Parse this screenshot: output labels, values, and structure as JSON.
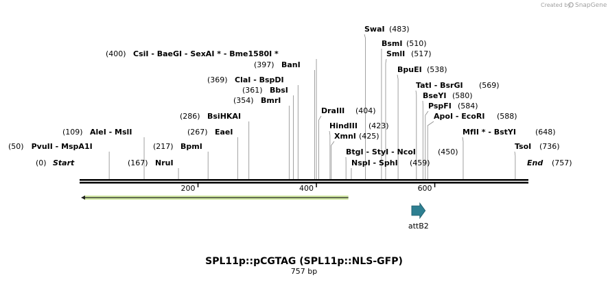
{
  "brand": {
    "created_by": "Created by",
    "app_name": "SnapGene"
  },
  "map": {
    "name": "SPL11p::pCGTAG (SPL11p::NLS-GFP)",
    "length_label": "757 bp",
    "start_label": "Start",
    "start_pos": "(0)",
    "end_label": "End",
    "end_pos": "(757)",
    "total_bp": 757,
    "axis_ticks": [
      200,
      400,
      600
    ]
  },
  "sites": [
    {
      "text": "PvuII - MspA1I",
      "pos": 50,
      "pos_text": "(50)"
    },
    {
      "text": "AleI - MslI",
      "pos": 109,
      "pos_text": "(109)"
    },
    {
      "text": "NruI",
      "pos": 167,
      "pos_text": "(167)"
    },
    {
      "text": "BpmI",
      "pos": 217,
      "pos_text": "(217)"
    },
    {
      "text": "EaeI",
      "pos": 267,
      "pos_text": "(267)"
    },
    {
      "text": "BsiHKAI",
      "pos": 286,
      "pos_text": "(286)"
    },
    {
      "text": "BmrI",
      "pos": 354,
      "pos_text": "(354)"
    },
    {
      "text": "BbsI",
      "pos": 361,
      "pos_text": "(361)"
    },
    {
      "text": "ClaI - BspDI",
      "pos": 369,
      "pos_text": "(369)"
    },
    {
      "text": "BanI",
      "pos": 397,
      "pos_text": "(397)"
    },
    {
      "text": "CsiI - BaeGI - SexAI * - Bme1580I *",
      "pos": 400,
      "pos_text": "(400)"
    },
    {
      "text": "DraIII",
      "pos": 404,
      "pos_text": "(404)"
    },
    {
      "text": "HindIII",
      "pos": 423,
      "pos_text": "(423)"
    },
    {
      "text": "XmnI",
      "pos": 425,
      "pos_text": "(425)"
    },
    {
      "text": "BtgI - StyI - NcoI",
      "pos": 450,
      "pos_text": "(450)"
    },
    {
      "text": "NspI - SphI",
      "pos": 459,
      "pos_text": "(459)"
    },
    {
      "text": "SwaI",
      "pos": 483,
      "pos_text": "(483)"
    },
    {
      "text": "BsmI",
      "pos": 510,
      "pos_text": "(510)"
    },
    {
      "text": "SmlI",
      "pos": 517,
      "pos_text": "(517)"
    },
    {
      "text": "BpuEI",
      "pos": 538,
      "pos_text": "(538)"
    },
    {
      "text": "TatI - BsrGI",
      "pos": 569,
      "pos_text": "(569)"
    },
    {
      "text": "BseYI",
      "pos": 580,
      "pos_text": "(580)"
    },
    {
      "text": "PspFI",
      "pos": 584,
      "pos_text": "(584)"
    },
    {
      "text": "ApoI - EcoRI",
      "pos": 588,
      "pos_text": "(588)"
    },
    {
      "text": "MfII * - BstYI",
      "pos": 648,
      "pos_text": "(648)"
    },
    {
      "text": "TsoI",
      "pos": 736,
      "pos_text": "(736)"
    }
  ],
  "features": [
    {
      "name": "",
      "start": 0,
      "end": 454,
      "direction": "reverse",
      "color": "#9acd32"
    },
    {
      "name": "attB2",
      "start": 561,
      "end": 584,
      "direction": "forward",
      "color": "#2a7f8f"
    }
  ],
  "colors": {
    "backbone": "#000000",
    "orf": "#9acd32",
    "attb": "#2e7f91",
    "leader": "#888888"
  }
}
